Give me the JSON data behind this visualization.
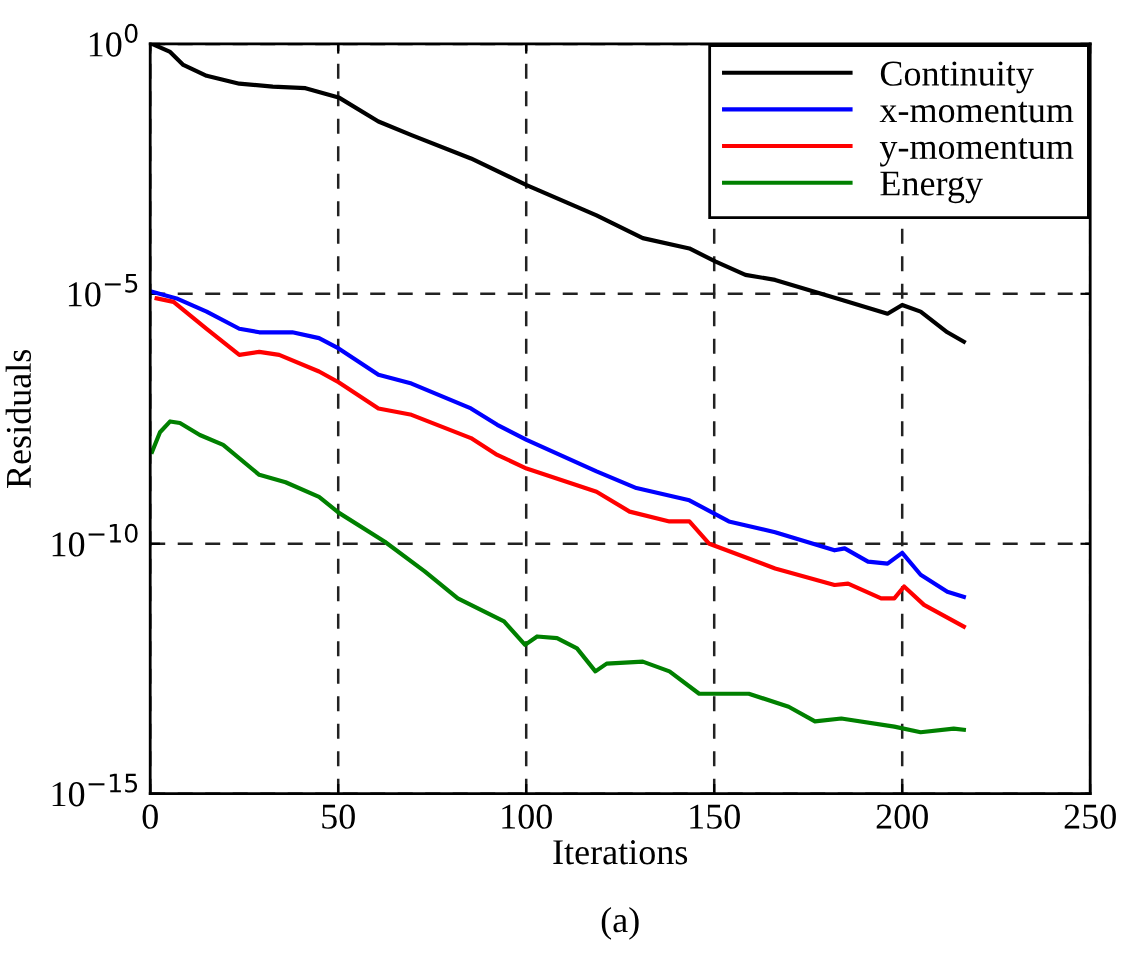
{
  "chart_data": {
    "type": "line",
    "xlabel": "Iterations",
    "ylabel": "Residuals",
    "annotations": [
      "(a)"
    ],
    "log": "y",
    "grid": true,
    "legend": "top right",
    "line_style": "solid",
    "marker": "none",
    "xlim": [
      0,
      250
    ],
    "xticks": [
      0,
      50,
      100,
      150,
      200,
      250
    ],
    "ylim": [
      1e-15,
      1
    ],
    "yticks": [
      {
        "value": 1,
        "label": "10$^{0}$"
      },
      {
        "value": 1e-05,
        "label": "10$^{−5}$"
      },
      {
        "value": 1e-10,
        "label": "10$^{−10}$"
      },
      {
        "value": 1e-15,
        "label": "10$^{−15}$"
      }
    ],
    "series": [
      {
        "name": "Continuity",
        "color": "#000000",
        "x": [
          0.5,
          5.3,
          8.8,
          15,
          23.7,
          32.6,
          41.3,
          50.1,
          60.7,
          69.5,
          85.3,
          100.1,
          118.7,
          131,
          143.4,
          150.4,
          158.3,
          166.2,
          183.8,
          196.1,
          200,
          204.9,
          212,
          216.4
        ],
        "values": [
          1.0,
          0.69,
          0.38,
          0.23,
          0.16,
          0.14,
          0.13,
          0.085,
          0.028,
          0.015,
          0.0051,
          0.0015,
          0.00037,
          0.00013,
          8.1e-05,
          4.4e-05,
          2.4e-05,
          1.9e-05,
          7.6e-06,
          4e-06,
          6e-06,
          4.4e-06,
          1.7e-06,
          1.1e-06
        ]
      },
      {
        "name": "x-momentum",
        "color": "#0000ff",
        "x": [
          0.5,
          7,
          15,
          23.7,
          29,
          37.8,
          44.9,
          50.1,
          60.7,
          69.5,
          85.3,
          92.3,
          100.1,
          118.7,
          129.3,
          143.4,
          153.9,
          166.2,
          182,
          184.7,
          190.9,
          196.1,
          200,
          204.9,
          212,
          216.4
        ],
        "values": [
          1.1e-05,
          8.1e-06,
          4.4e-06,
          2e-06,
          1.7e-06,
          1.7e-06,
          1.3e-06,
          8.1e-07,
          2.4e-07,
          1.6e-07,
          5.1e-08,
          2.4e-08,
          1.2e-08,
          2.8e-09,
          1.3e-09,
          7.4e-10,
          2.8e-10,
          1.7e-10,
          7.4e-11,
          8.1e-11,
          4.4e-11,
          4e-11,
          6.6e-11,
          2.4e-11,
          1.1e-11,
          8.7e-12
        ]
      },
      {
        "name": "y-momentum",
        "color": "#ff0000",
        "x": [
          1.7,
          6.2,
          15,
          23.7,
          29,
          34.3,
          44.9,
          50.1,
          60.7,
          69.5,
          85.3,
          92.3,
          100.1,
          118.7,
          127.5,
          138.1,
          143.4,
          148.7,
          166.2,
          182,
          185.6,
          194.4,
          197.9,
          200.5,
          205.8,
          216.4
        ],
        "values": [
          8.1e-06,
          6.9e-06,
          2e-06,
          6e-07,
          6.9e-07,
          6e-07,
          2.8e-07,
          1.7e-07,
          5.1e-08,
          3.8e-08,
          1.3e-08,
          6e-09,
          3.2e-09,
          1.1e-09,
          4.4e-10,
          2.8e-10,
          2.8e-10,
          1e-10,
          3.2e-11,
          1.5e-11,
          1.6e-11,
          8.1e-12,
          8.1e-12,
          1.4e-11,
          6e-12,
          2.2e-12
        ]
      },
      {
        "name": "Energy",
        "color": "#008000",
        "x": [
          0.5,
          2.6,
          5.3,
          7.9,
          13.2,
          19.4,
          29,
          36,
          44.9,
          50.1,
          62.4,
          73,
          81.8,
          94.1,
          99.7,
          102.9,
          108.2,
          113.5,
          118.4,
          121.4,
          131,
          138.1,
          146,
          159.2,
          169.8,
          176.8,
          183.8,
          197.9,
          204.9,
          213.7,
          216.4
        ],
        "values": [
          6.9e-09,
          1.7e-08,
          2.8e-08,
          2.6e-08,
          1.5e-08,
          9.5e-09,
          2.4e-09,
          1.7e-09,
          8.7e-10,
          4.2e-10,
          1.1e-10,
          2.8e-11,
          8.1e-12,
          2.8e-12,
          9.5e-13,
          1.4e-12,
          1.3e-12,
          8.1e-13,
          2.8e-13,
          4e-13,
          4.4e-13,
          2.8e-13,
          1e-13,
          1e-13,
          5.5e-14,
          2.8e-14,
          3.2e-14,
          2.2e-14,
          1.7e-14,
          2e-14,
          1.9e-14
        ]
      }
    ]
  }
}
